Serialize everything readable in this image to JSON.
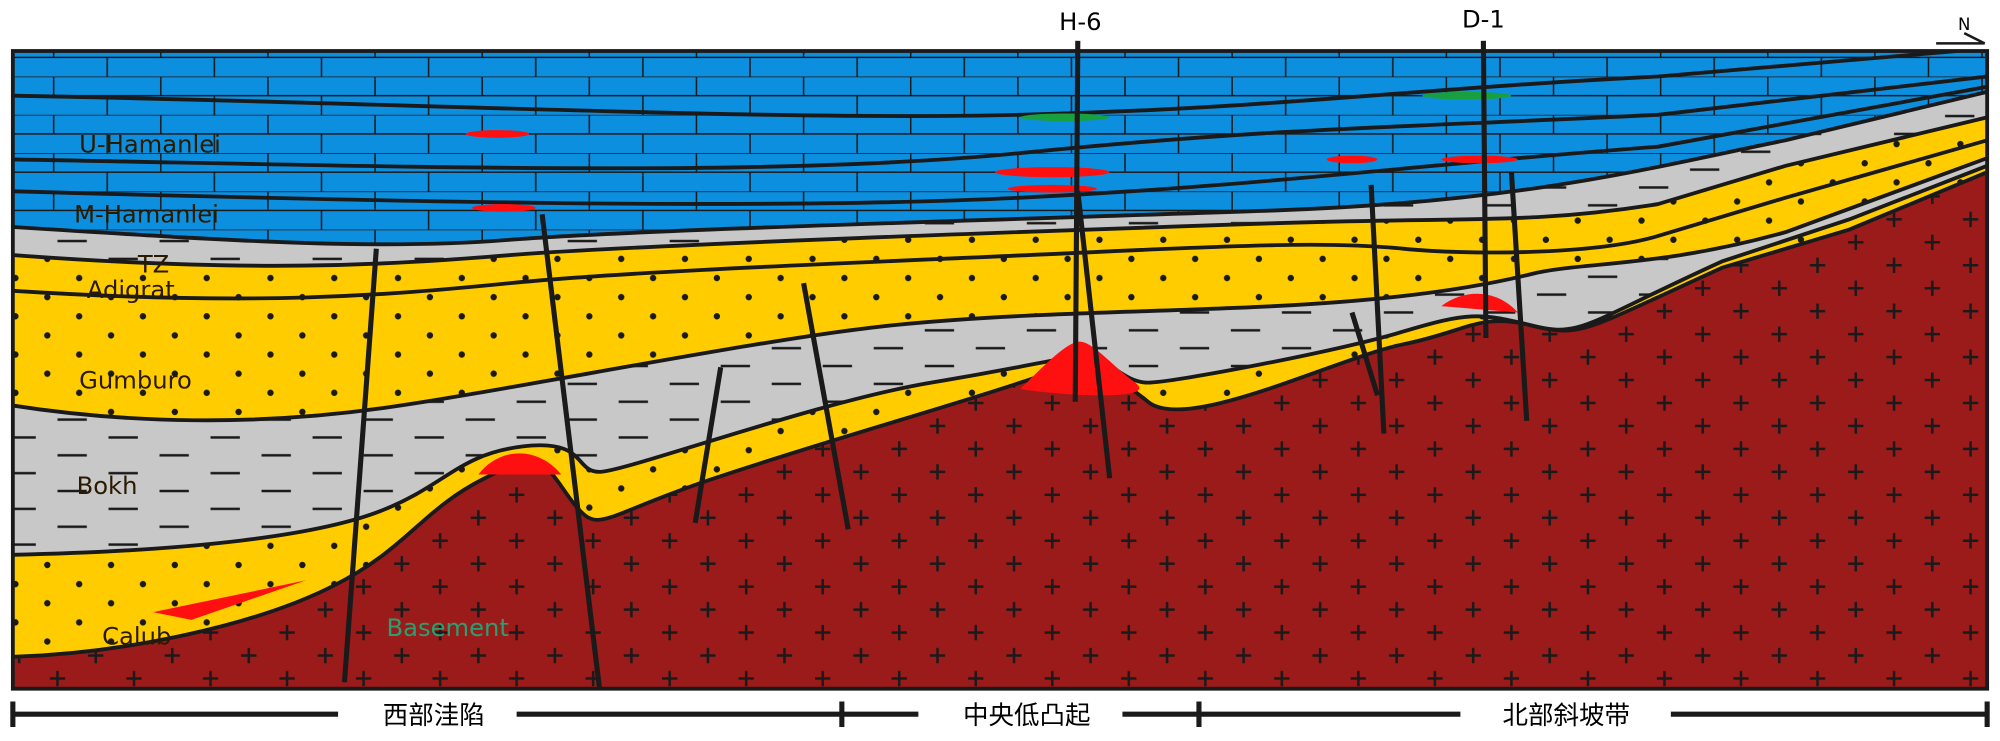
{
  "wells": [
    {
      "label": "H-6"
    },
    {
      "label": "D-1"
    }
  ],
  "north": "N",
  "layers": [
    {
      "label": "U-Hamanlei"
    },
    {
      "label": "M-Hamanlei"
    },
    {
      "label": "TZ"
    },
    {
      "label": "Adigrat"
    },
    {
      "label": "Gumburo"
    },
    {
      "label": "Bokh"
    },
    {
      "label": "Calub"
    }
  ],
  "basement": "Basement",
  "zones": [
    {
      "label": "西部洼陷"
    },
    {
      "label": "中央低凸起"
    },
    {
      "label": "北部斜坡带"
    }
  ]
}
